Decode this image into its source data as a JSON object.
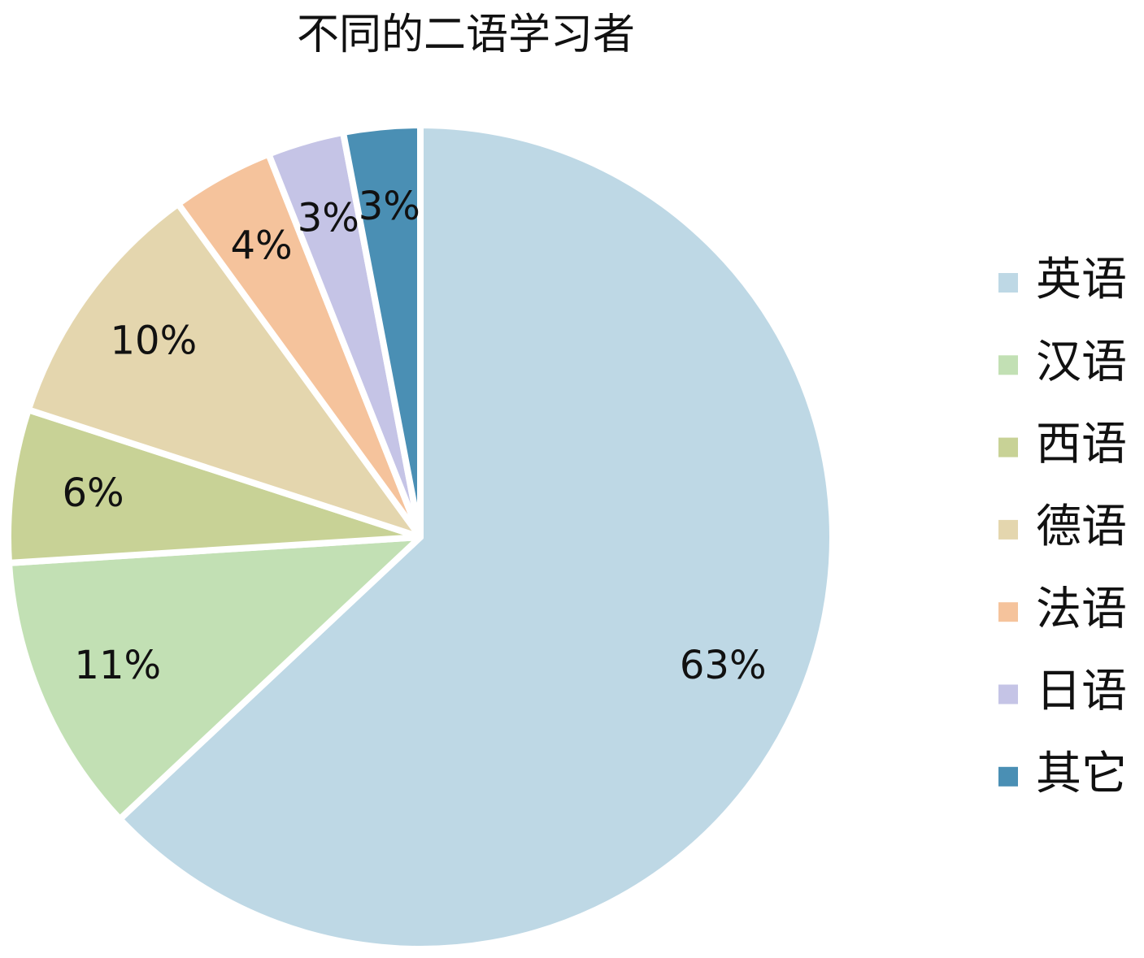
{
  "chart_data": {
    "type": "pie",
    "title": "不同的二语学习者",
    "categories": [
      "英语",
      "汉语",
      "西语",
      "德语",
      "法语",
      "日语",
      "其它"
    ],
    "values": [
      63,
      11,
      6,
      10,
      4,
      3,
      3
    ],
    "value_labels": [
      "63%",
      "11%",
      "6%",
      "10%",
      "4%",
      "3%",
      "3%"
    ],
    "colors": [
      "#bed8e5",
      "#c2e0b4",
      "#c8d296",
      "#e4d6ae",
      "#f5c39c",
      "#c5c4e6",
      "#4a8fb4"
    ],
    "legend": "right"
  }
}
